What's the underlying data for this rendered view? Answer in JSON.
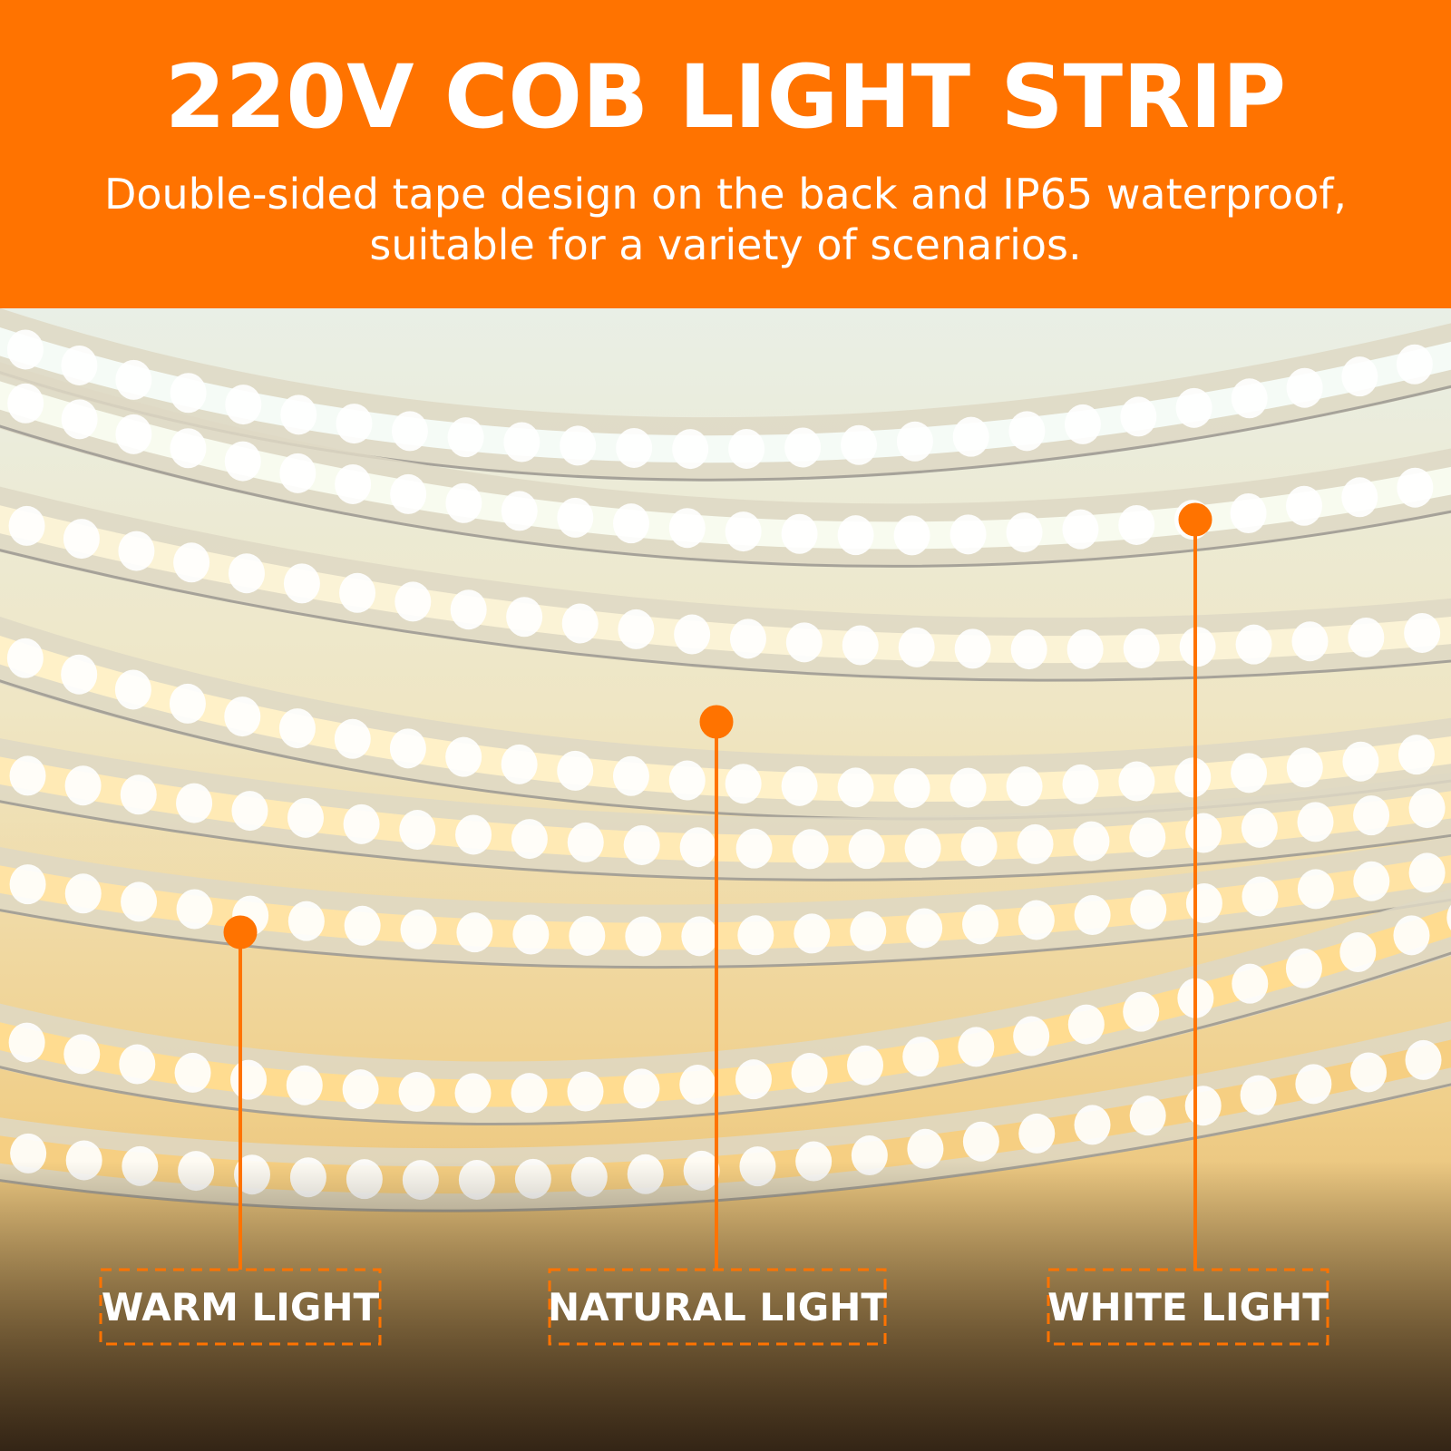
{
  "header": {
    "title": "220V COB LIGHT STRIP",
    "subtitle_lines": [
      "Double-sided tape design on the back and IP65 waterproof,",
      "suitable for a variety of scenarios."
    ]
  },
  "labels": [
    "WARM LIGHT",
    "NATURAL LIGHT",
    "WHITE LIGHT"
  ]
}
